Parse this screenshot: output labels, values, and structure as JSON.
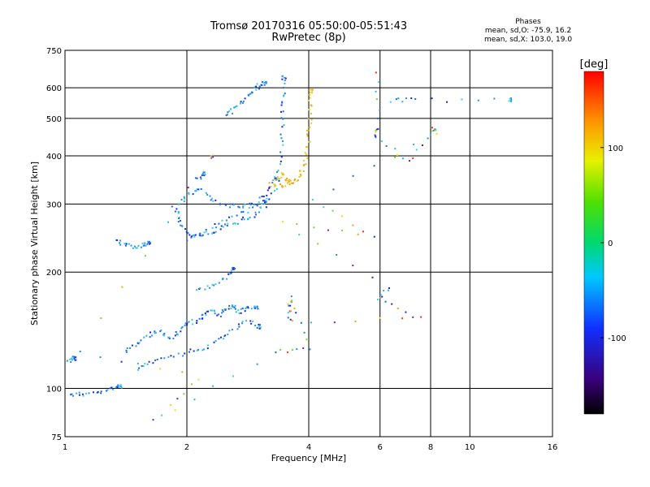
{
  "header": {
    "title_line1": "Tromsø 20170316 05:50:00-05:51:43",
    "title_line2": "RwPretec (8p)"
  },
  "stats": {
    "heading": "Phases",
    "line_o": "mean, sd,O: -75.9, 16.2",
    "line_x": "mean, sd,X: 103.0, 19.0"
  },
  "chart_data": {
    "type": "scatter",
    "xlabel": "Frequency [MHz]",
    "ylabel": "Stationary phase Virtual Height [km]",
    "x_scale": "log",
    "y_scale": "log",
    "xlim": [
      1,
      16
    ],
    "ylim": [
      75,
      750
    ],
    "x_ticks": [
      "1",
      "2",
      "4",
      "6",
      "8",
      "10",
      "16"
    ],
    "y_ticks": [
      "75",
      "100",
      "200",
      "300",
      "400",
      "500",
      "600",
      "750"
    ],
    "grid": true,
    "colorbar": {
      "label": "[deg]",
      "range": [
        -180,
        180
      ],
      "ticks": [
        "100",
        "0",
        "-100"
      ]
    },
    "series": [
      {
        "values": [
          [
            1.03,
            97
          ],
          [
            1.1,
            97
          ],
          [
            1.2,
            98
          ],
          [
            1.3,
            100
          ],
          [
            1.36,
            102
          ]
        ]
      },
      {
        "values": [
          [
            1.02,
            118
          ],
          [
            1.05,
            120
          ]
        ]
      },
      {
        "values": [
          [
            1.34,
            242
          ],
          [
            1.4,
            236
          ],
          [
            1.48,
            234
          ],
          [
            1.55,
            236
          ],
          [
            1.6,
            239
          ]
        ]
      },
      {
        "values": [
          [
            1.4,
            125
          ],
          [
            1.5,
            130
          ],
          [
            1.6,
            138
          ],
          [
            1.7,
            142
          ],
          [
            1.8,
            135
          ],
          [
            1.9,
            140
          ],
          [
            2.0,
            148
          ],
          [
            2.1,
            150
          ],
          [
            2.2,
            155
          ],
          [
            2.3,
            160
          ],
          [
            2.4,
            155
          ],
          [
            2.5,
            162
          ],
          [
            2.6,
            165
          ],
          [
            2.7,
            158
          ],
          [
            2.8,
            162
          ],
          [
            2.95,
            163
          ]
        ]
      },
      {
        "values": [
          [
            1.5,
            112
          ],
          [
            1.6,
            118
          ],
          [
            1.8,
            120
          ],
          [
            2.0,
            125
          ],
          [
            2.2,
            128
          ],
          [
            2.4,
            135
          ],
          [
            2.6,
            142
          ],
          [
            2.8,
            150
          ],
          [
            3.0,
            145
          ]
        ]
      },
      {
        "values": [
          [
            2.1,
            180
          ],
          [
            2.3,
            185
          ],
          [
            2.5,
            195
          ],
          [
            2.6,
            205
          ]
        ]
      },
      {
        "values": [
          [
            1.85,
            295
          ],
          [
            1.9,
            280
          ],
          [
            1.95,
            262
          ],
          [
            2.05,
            250
          ],
          [
            2.2,
            252
          ],
          [
            2.35,
            258
          ],
          [
            2.5,
            265
          ],
          [
            2.7,
            272
          ],
          [
            2.9,
            282
          ],
          [
            3.1,
            298
          ],
          [
            3.3,
            330
          ],
          [
            3.38,
            380
          ],
          [
            3.42,
            450
          ],
          [
            3.44,
            520
          ],
          [
            3.45,
            580
          ],
          [
            3.46,
            640
          ]
        ]
      },
      {
        "values": [
          [
            1.9,
            300
          ],
          [
            2.0,
            320
          ],
          [
            2.15,
            330
          ],
          [
            2.3,
            310
          ],
          [
            2.5,
            300
          ],
          [
            2.7,
            295
          ],
          [
            2.9,
            300
          ],
          [
            3.1,
            320
          ],
          [
            3.3,
            350
          ]
        ]
      },
      {
        "values": [
          [
            2.0,
            245
          ],
          [
            2.2,
            255
          ],
          [
            2.5,
            275
          ],
          [
            2.8,
            290
          ],
          [
            3.1,
            305
          ]
        ]
      },
      {
        "values": [
          [
            2.1,
            350
          ],
          [
            2.2,
            362
          ]
        ]
      },
      {
        "values": [
          [
            2.5,
            510
          ],
          [
            2.6,
            530
          ],
          [
            2.75,
            560
          ],
          [
            2.9,
            585
          ],
          [
            3.0,
            610
          ],
          [
            3.1,
            625
          ]
        ]
      },
      {
        "values": [
          [
            3.2,
            338
          ],
          [
            3.4,
            335
          ],
          [
            3.6,
            340
          ],
          [
            3.75,
            350
          ],
          [
            3.85,
            370
          ],
          [
            3.92,
            400
          ],
          [
            3.97,
            440
          ],
          [
            4.0,
            490
          ],
          [
            4.02,
            540
          ],
          [
            4.03,
            590
          ]
        ]
      },
      {
        "values": [
          [
            3.3,
            350
          ],
          [
            3.45,
            360
          ],
          [
            3.55,
            345
          ]
        ]
      },
      {
        "values": [
          [
            6.4,
            560
          ],
          [
            7.3,
            560
          ],
          [
            12.5,
            560
          ]
        ]
      },
      {
        "values": [
          [
            5.9,
            660
          ],
          [
            5.9,
            470
          ],
          [
            5.85,
            450
          ],
          [
            7.1,
            388
          ],
          [
            8.1,
            470
          ],
          [
            8.15,
            460
          ],
          [
            4.05,
            308
          ],
          [
            5.8,
            250
          ],
          [
            3.4,
            270
          ],
          [
            6.3,
            183
          ],
          [
            5.85,
            172
          ],
          [
            7.6,
            152
          ],
          [
            3.6,
            150
          ],
          [
            3.55,
            163
          ],
          [
            3.6,
            172
          ],
          [
            4.0,
            128
          ],
          [
            3.3,
            125
          ],
          [
            1.65,
            83
          ],
          [
            2.15,
            107
          ],
          [
            1.08,
            125
          ],
          [
            2.3,
            400
          ]
        ]
      }
    ]
  }
}
